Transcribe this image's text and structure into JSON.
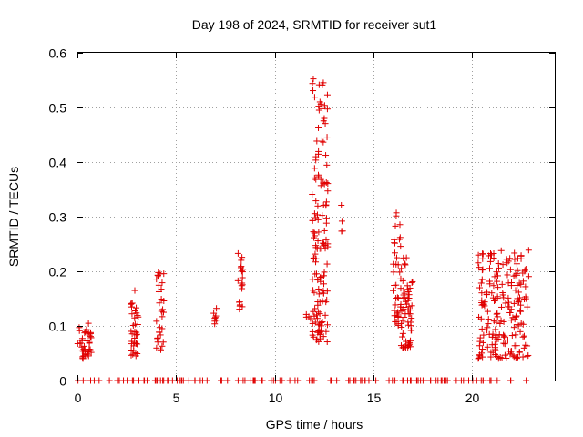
{
  "chart_data": {
    "type": "scatter",
    "title": "Day 198 of 2024, SRMTID for receiver sut1",
    "xlabel": "GPS time / hours",
    "ylabel": "SRMTID / TECUs",
    "xlim": [
      0,
      24.2
    ],
    "ylim": [
      0,
      0.6
    ],
    "xticks": [
      0,
      5,
      10,
      15,
      20
    ],
    "yticks": [
      0,
      0.1,
      0.2,
      0.3,
      0.4,
      0.5,
      0.6
    ],
    "xtick_labels": [
      "0",
      "5",
      "10",
      "15",
      "20"
    ],
    "ytick_labels": [
      "0",
      "0.1",
      "0.2",
      "0.3",
      "0.4",
      "0.5",
      "0.6"
    ],
    "grid": true,
    "marker": "+",
    "color": "#e00000",
    "series": [
      {
        "name": "SRMTID",
        "clusters": [
          {
            "x": [
              0.0,
              0.7
            ],
            "y": [
              0.04,
              0.105
            ],
            "n": 40,
            "seed": 1
          },
          {
            "x": [
              2.7,
              3.1
            ],
            "y": [
              0.045,
              0.165
            ],
            "n": 35,
            "seed": 2
          },
          {
            "x": [
              4.0,
              4.4
            ],
            "y": [
              0.055,
              0.205
            ],
            "n": 30,
            "seed": 3
          },
          {
            "x": [
              6.9,
              7.1
            ],
            "y": [
              0.1,
              0.135
            ],
            "n": 8,
            "seed": 4
          },
          {
            "x": [
              8.1,
              8.4
            ],
            "y": [
              0.13,
              0.235
            ],
            "n": 20,
            "seed": 5
          },
          {
            "x": [
              11.6,
              11.9
            ],
            "y": [
              0.11,
              0.125
            ],
            "n": 4,
            "seed": 6
          },
          {
            "x": [
              11.9,
              12.7
            ],
            "y": [
              0.07,
              0.57
            ],
            "n": 140,
            "seed": 7
          },
          {
            "x": [
              13.3,
              13.5
            ],
            "y": [
              0.25,
              0.33
            ],
            "n": 4,
            "seed": 8
          },
          {
            "x": [
              16.0,
              16.4
            ],
            "y": [
              0.1,
              0.31
            ],
            "n": 40,
            "seed": 9
          },
          {
            "x": [
              16.4,
              17.0
            ],
            "y": [
              0.06,
              0.225
            ],
            "n": 60,
            "seed": 10
          },
          {
            "x": [
              20.3,
              22.9
            ],
            "y": [
              0.04,
              0.24
            ],
            "n": 200,
            "seed": 11
          }
        ],
        "zero_band": {
          "x": [
            0.0,
            22.8
          ],
          "y": 0,
          "n": 120,
          "seed": 12
        }
      }
    ]
  }
}
